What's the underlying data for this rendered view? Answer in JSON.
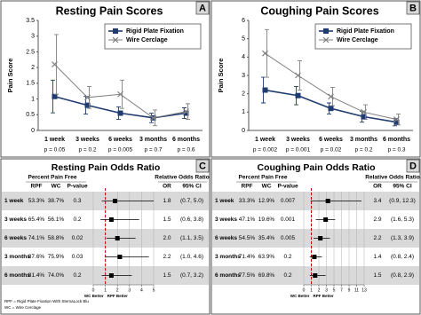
{
  "chart_data": [
    {
      "type": "line",
      "panel": "A",
      "title": "Resting Pain Scores",
      "ylabel": "Pain Score",
      "categories": [
        "1 week",
        "3 weeks",
        "6 weeks",
        "3 months",
        "6 months"
      ],
      "p_labels": [
        "p = 0.05",
        "p = 0.2",
        "p = 0.005",
        "p = 0.7",
        "p = 0.6"
      ],
      "ylim": [
        0,
        3.5
      ],
      "yticks": [
        0,
        0.5,
        1,
        1.5,
        2,
        2.5,
        3,
        3.5
      ],
      "legend": "upper right",
      "series": [
        {
          "name": "Rigid Plate Fixation",
          "color": "#1f3b70",
          "marker": "square",
          "values": [
            1.08,
            0.8,
            0.55,
            0.4,
            0.55
          ],
          "errors": [
            0.52,
            0.28,
            0.2,
            0.15,
            0.17
          ]
        },
        {
          "name": "Wire Cerclage",
          "color": "#808080",
          "marker": "x",
          "values": [
            2.1,
            1.05,
            1.15,
            0.4,
            0.6
          ],
          "errors": [
            0.95,
            0.35,
            0.45,
            0.25,
            0.25
          ]
        }
      ]
    },
    {
      "type": "line",
      "panel": "B",
      "title": "Coughing Pain Scores",
      "ylabel": "Pain Score",
      "categories": [
        "1 week",
        "3 weeks",
        "6 weeks",
        "3 months",
        "6 months"
      ],
      "p_labels": [
        "p = 0.002",
        "p = 0.001",
        "p = 0.02",
        "p = 0.2",
        "p = 0.3"
      ],
      "ylim": [
        0,
        6
      ],
      "yticks": [
        0,
        1,
        2,
        3,
        4,
        5,
        6
      ],
      "legend": "upper right",
      "series": [
        {
          "name": "Rigid Plate Fixation",
          "color": "#1f3b70",
          "marker": "square",
          "values": [
            2.2,
            1.9,
            1.2,
            0.75,
            0.45
          ],
          "errors": [
            0.7,
            0.5,
            0.3,
            0.3,
            0.2
          ]
        },
        {
          "name": "Wire Cerclage",
          "color": "#808080",
          "marker": "x",
          "values": [
            4.2,
            3.0,
            1.85,
            1.0,
            0.6
          ],
          "errors": [
            1.3,
            0.8,
            0.5,
            0.4,
            0.3
          ]
        }
      ]
    },
    {
      "type": "forest",
      "panel": "C",
      "title": "Resting Pain Odds Ratio",
      "group_header": "Percent Pain Free",
      "columns": [
        "RPF",
        "WC",
        "P-value"
      ],
      "ratio_header": "Relative Odds Ratio",
      "ratio_columns": [
        "OR",
        "95% CI"
      ],
      "categories": [
        "1 week",
        "3 weeks",
        "6 weeks",
        "3 months",
        "6 months"
      ],
      "rpf": {
        "values": [
          53.3,
          65.4,
          74.1,
          87.6,
          81.4
        ],
        "value_labels": [
          "53.3%",
          "65.4%",
          "74.1%",
          "87.6%",
          "81.4%"
        ]
      },
      "wc": {
        "values": [
          38.7,
          56.1,
          58.8,
          75.9,
          74.0
        ],
        "value_labels": [
          "38.7%",
          "56.1%",
          "58.8%",
          "75.9%",
          "74.0%"
        ]
      },
      "p_values": [
        0.3,
        0.2,
        0.02,
        0.03,
        0.2
      ],
      "or": {
        "values": [
          1.8,
          1.5,
          2.0,
          2.2,
          1.5
        ],
        "value_labels": [
          "1.8",
          "1.5",
          "2.0",
          "2.2",
          "1.5"
        ]
      },
      "ci_low": [
        0.7,
        0.6,
        1.1,
        1.0,
        0.7
      ],
      "ci_high": [
        5.0,
        3.8,
        3.5,
        4.6,
        3.2
      ],
      "ci_labels": [
        "(0.7, 5.0)",
        "(0.6, 3.8)",
        "(1.1, 3.5)",
        "(1.0, 4.6)",
        "(0.7, 3.2)"
      ],
      "reference": 1,
      "reference_color": "#c00000",
      "xlim": [
        0,
        5
      ],
      "xticks": [
        0,
        1,
        2,
        3,
        4,
        5
      ],
      "xlabels": [
        "WC Better",
        "RPF Better"
      ],
      "notes": [
        "RPF = Rigid Plate Fixation With SternaLock Blu",
        "WC = Wire Cerclage"
      ]
    },
    {
      "type": "forest",
      "panel": "D",
      "title": "Coughing Pain Odds Ratio",
      "group_header": "Percent Pain Free",
      "columns": [
        "RPF",
        "WC",
        "P-value"
      ],
      "ratio_header": "Relative Odds Ratio",
      "ratio_columns": [
        "OR",
        "95% CI"
      ],
      "categories": [
        "1 week",
        "3 weeks",
        "6 weeks",
        "3 months",
        "6 months"
      ],
      "rpf": {
        "values": [
          33.3,
          47.1,
          54.5,
          71.4,
          77.5
        ],
        "value_labels": [
          "33.3%",
          "47.1%",
          "54.5%",
          "71.4%",
          "77.5%"
        ]
      },
      "wc": {
        "values": [
          12.9,
          19.6,
          35.4,
          63.9,
          69.8
        ],
        "value_labels": [
          "12.9%",
          "19.6%",
          "35.4%",
          "63.9%",
          "69.8%"
        ]
      },
      "p_values": [
        0.007,
        0.001,
        0.005,
        0.2,
        0.2
      ],
      "or": {
        "values": [
          3.4,
          2.9,
          2.2,
          1.4,
          1.5
        ],
        "value_labels": [
          "3.4",
          "2.9",
          "2.2",
          "1.4",
          "1.5"
        ]
      },
      "ci_low": [
        0.9,
        1.6,
        1.3,
        0.8,
        0.8
      ],
      "ci_high": [
        12.3,
        5.3,
        3.9,
        2.4,
        2.9
      ],
      "ci_labels": [
        "(0.9, 12.3)",
        "(1.6, 5.3)",
        "(1.3, 3.9)",
        "(0.8, 2.4)",
        "(0.8, 2.9)"
      ],
      "reference": 1,
      "reference_color": "#c00000",
      "xlim": [
        0,
        13
      ],
      "xticks": [
        0,
        1,
        2,
        3,
        5,
        7,
        9,
        11,
        13
      ],
      "xlabels": [
        "WC Better",
        "RPF Better"
      ]
    }
  ]
}
